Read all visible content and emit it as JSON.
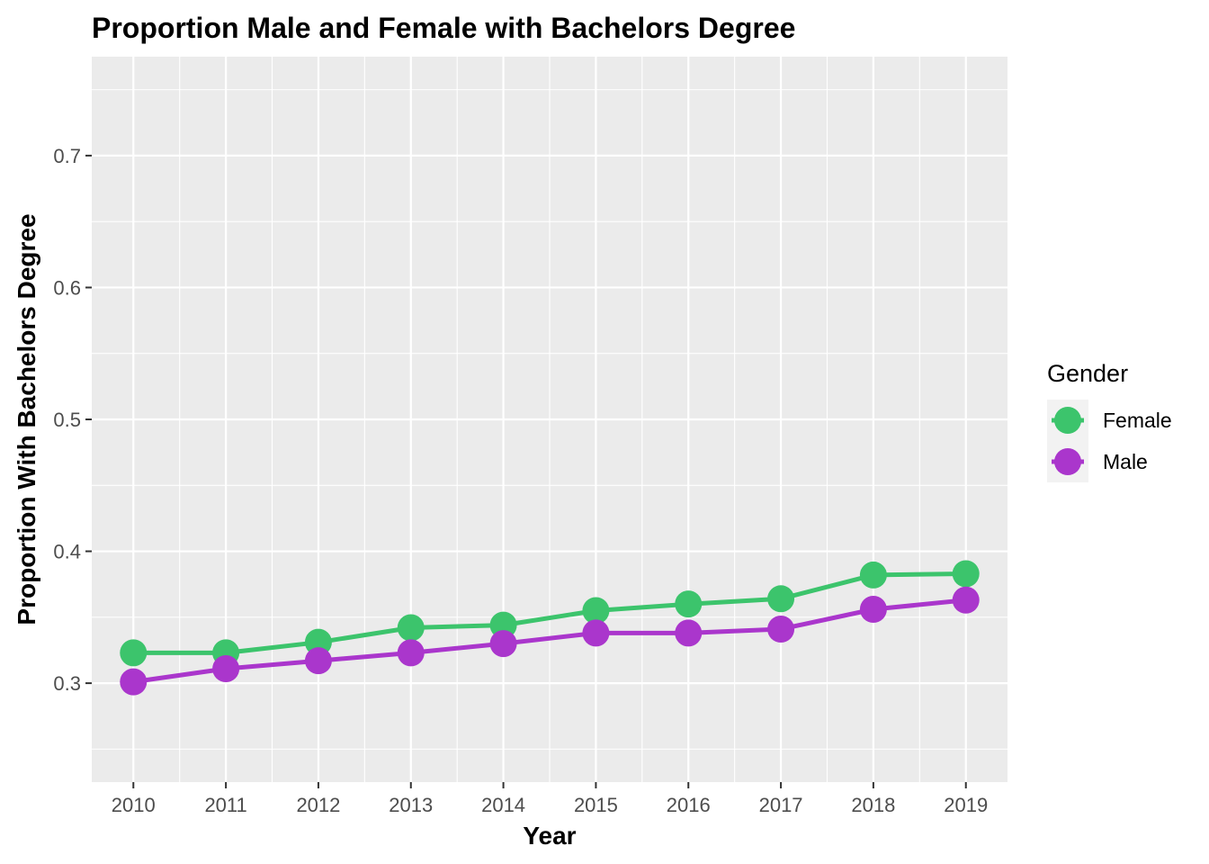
{
  "chart_data": {
    "type": "line",
    "title": "Proportion Male and Female with Bachelors Degree",
    "xlabel": "Year",
    "ylabel": "Proportion With Bachelors Degree",
    "x": [
      2010,
      2011,
      2012,
      2013,
      2014,
      2015,
      2016,
      2017,
      2018,
      2019
    ],
    "x_tick_labels": [
      "2010",
      "2011",
      "2012",
      "2013",
      "2014",
      "2015",
      "2016",
      "2017",
      "2018",
      "2019"
    ],
    "y_ticks": [
      0.3,
      0.4,
      0.5,
      0.6,
      0.7
    ],
    "y_tick_labels": [
      "0.3",
      "0.4",
      "0.5",
      "0.6",
      "0.7"
    ],
    "xlim": [
      2009.55,
      2019.45
    ],
    "ylim": [
      0.225,
      0.775
    ],
    "grid": true,
    "legend": {
      "title": "Gender",
      "placement": "right"
    },
    "series": [
      {
        "name": "Female",
        "color": "#3CC46C",
        "values": [
          0.323,
          0.323,
          0.331,
          0.342,
          0.344,
          0.355,
          0.36,
          0.364,
          0.382,
          0.383
        ]
      },
      {
        "name": "Male",
        "color": "#AA36CC",
        "values": [
          0.301,
          0.311,
          0.317,
          0.323,
          0.33,
          0.338,
          0.338,
          0.341,
          0.356,
          0.363
        ]
      }
    ]
  }
}
